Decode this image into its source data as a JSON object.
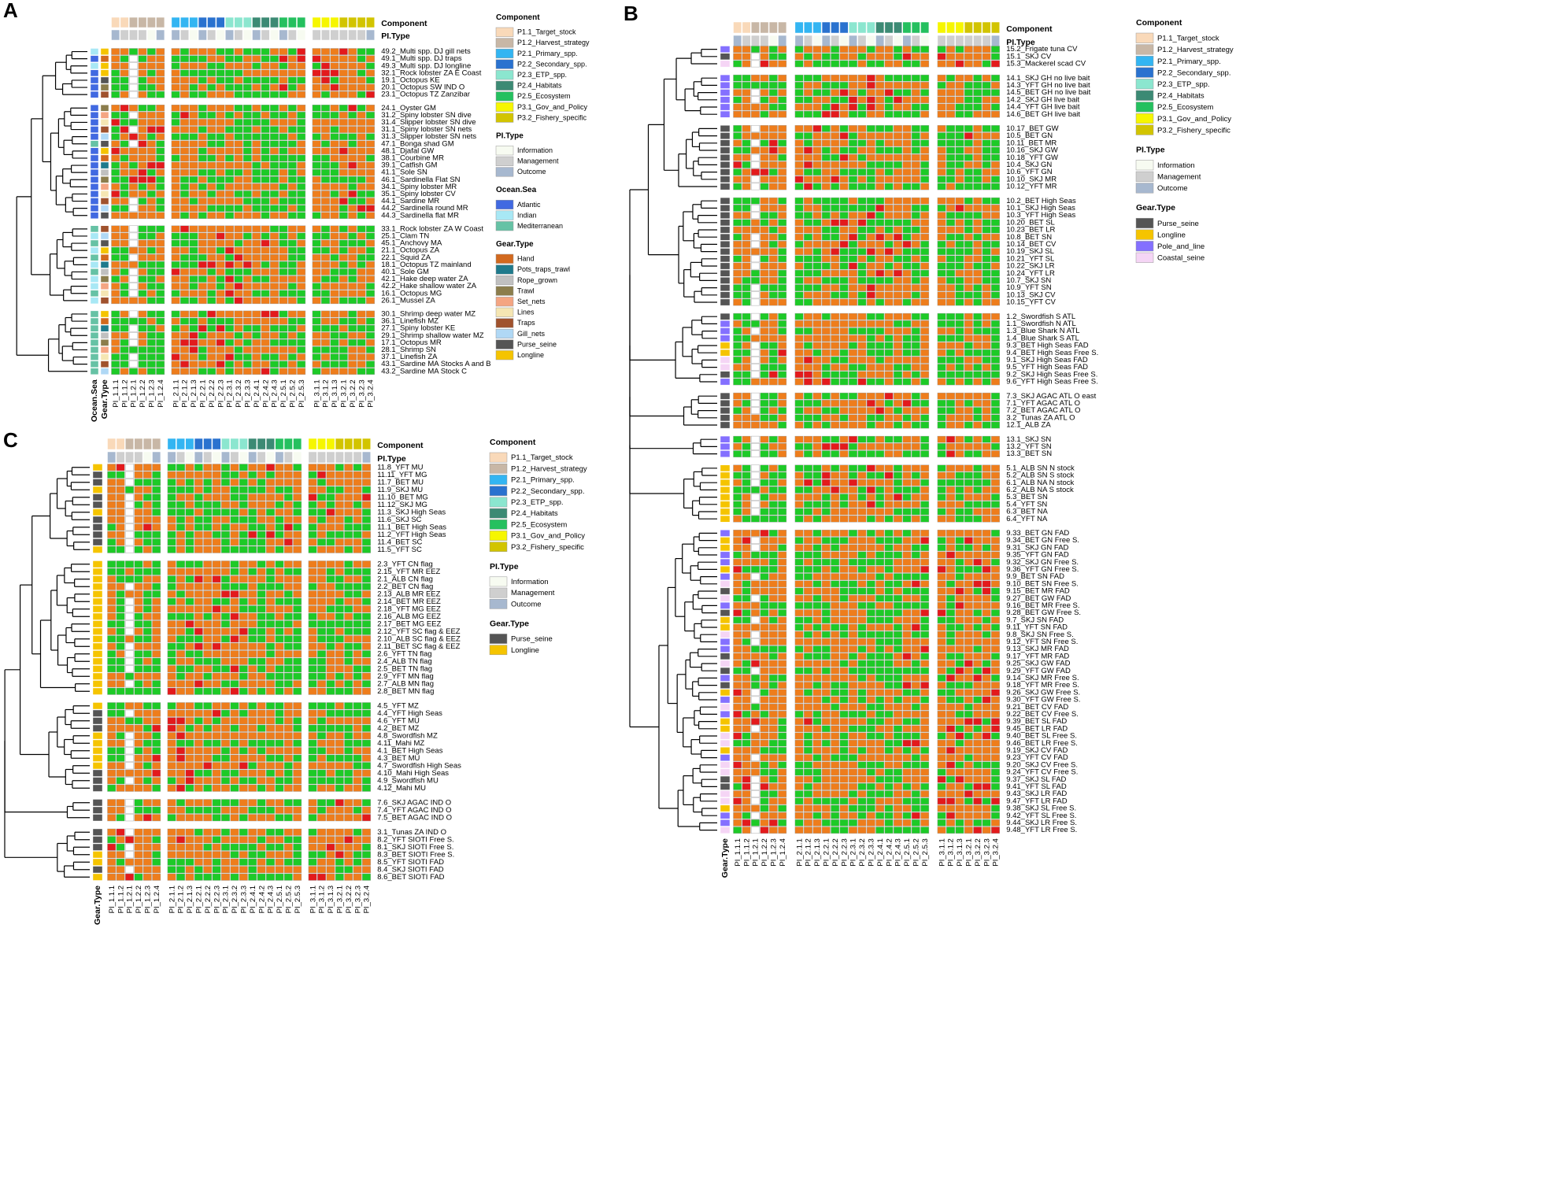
{
  "figure": {
    "panel_letters": [
      "A",
      "B",
      "C"
    ]
  },
  "colors": {
    "score_outcome": {
      "lt60": "#e31a1c",
      "60_79": "#ee7d1c",
      "ge80": "#1dca27",
      "na": "#ffffff"
    },
    "component": {
      "P1.1_Target_stock": "#f9d9b9",
      "P1.2_Harvest_strategy": "#c8b7a6",
      "P2.1_Primary_spp.": "#33b5f2",
      "P2.2_Secondary_spp.": "#2a72cf",
      "P2.3_ETP_spp.": "#8be6cf",
      "P2.4_Habitats": "#3c8a74",
      "P2.5_Ecosystem": "#25c05f",
      "P3.1_Gov_and_Policy": "#f6f600",
      "P3.2_Fishery_specific": "#d2c400"
    },
    "pi_type": {
      "Information": "#f7fbf1",
      "Management": "#cfcfcf",
      "Outcome": "#a7b8cf"
    },
    "ocean": {
      "Atlantic": "#4169e1",
      "Indian": "#a8e8f5",
      "Mediterranean": "#66c2a5"
    },
    "gear": {
      "Hand": "#d2691e",
      "Pots_traps_trawl": "#1f7a8c",
      "Rope_grown": "#c0c0c0",
      "Trawl": "#8b7d4c",
      "Set_nets": "#f4a582",
      "Lines": "#f5e6b3",
      "Traps": "#a0522d",
      "Gill_nets": "#b0d8f5",
      "Purse_seine": "#555555",
      "Longline": "#f5c400",
      "Pole_and_line": "#8470ff",
      "Coastal_seine": "#f5d5f5"
    }
  },
  "legend_text": {
    "component_title": "Component",
    "pitype_title": "PI.Type",
    "ocean_title": "Ocean.Sea",
    "gear_title": "Gear.Type",
    "component": [
      "P1.1_Target_stock",
      "P1.2_Harvest_strategy",
      "P2.1_Primary_spp.",
      "P2.2_Secondary_spp.",
      "P2.3_ETP_spp.",
      "P2.4_Habitats",
      "P2.5_Ecosystem",
      "P3.1_Gov_and_Policy",
      "P3.2_Fishery_specific"
    ],
    "pitype": [
      "Information",
      "Management",
      "Outcome"
    ],
    "ocean": [
      "Atlantic",
      "Indian",
      "Mediterranean"
    ],
    "gear_A": [
      "Hand",
      "Pots_traps_trawl",
      "Rope_grown",
      "Trawl",
      "Set_nets",
      "Lines",
      "Traps",
      "Gill_nets",
      "Purse_seine",
      "Longline"
    ],
    "gear_B": [
      "Purse_seine",
      "Longline",
      "Pole_and_line",
      "Coastal_seine"
    ],
    "gear_C": [
      "Purse_seine",
      "Longline"
    ]
  },
  "chart_data": [
    {
      "panel": "A",
      "type": "heatmap",
      "column_labels": [
        "PI_1.1.1",
        "PI_1.1.2",
        "PI_1.2.1",
        "PI_1.2.2",
        "PI_1.2.3",
        "PI_1.2.4",
        "PI_2.1.1",
        "PI_2.1.2",
        "PI_2.1.3",
        "PI_2.2.1",
        "PI_2.2.2",
        "PI_2.2.3",
        "PI_2.3.1",
        "PI_2.3.2",
        "PI_2.3.3",
        "PI_2.4.1",
        "PI_2.4.2",
        "PI_2.4.3",
        "PI_2.5.1",
        "PI_2.5.2",
        "PI_2.5.3",
        "PI_3.1.1",
        "PI_3.1.2",
        "PI_3.1.3",
        "PI_3.2.1",
        "PI_3.2.2",
        "PI_3.2.3",
        "PI_3.2.4"
      ],
      "header_rows": [
        "Component",
        "PI.Type"
      ],
      "side_bars": [
        "Ocean.Sea",
        "Gear.Type"
      ],
      "row_groups": [
        [
          "49.2_Multi spp. DJ gill nets",
          "49.1_Multi spp. DJ traps",
          "49.3_Multi spp. DJ longline",
          "32.1_Rock lobster ZA E Coast",
          "19.1_Octopus KE",
          "20.1_Octopus SW IND O",
          "23.1_Octopus TZ Zanzibar"
        ],
        [
          "24.1_Oyster GM",
          "31.2_Spiny lobster SN dive",
          "31.4_Slipper lobster SN dive",
          "31.1_Spiny lobster SN nets",
          "31.3_Slipper lobster SN nets",
          "47.1_Bonga shad GM",
          "48.1_Djafal GW",
          "38.1_Courbine MR",
          "39.1_Catfish GM",
          "41.1_Sole SN",
          "46.1_Sardinella Flat SN",
          "34.1_Spiny lobster MR",
          "35.1_Spiny lobster CV",
          "44.1_Sardine MR",
          "44.2_Sardinella round MR",
          "44.3_Sardinella flat MR"
        ],
        [
          "33.1_Rock lobster ZA W Coast",
          "25.1_Clam TN",
          "45.1_Anchovy MA",
          "21.1_Octopus ZA",
          "22.1_Squid ZA",
          "18.1_Octopus TZ mainland",
          "40.1_Sole GM",
          "42.1_Hake deep water ZA",
          "42.2_Hake shallow water ZA",
          "16.1_Octopus MG",
          "26.1_Mussel ZA"
        ],
        [
          "30.1_Shrimp deep water MZ",
          "36.1_Linefish MZ",
          "27.1_Spiny lobster KE",
          "29.1_Shrimp shallow water MZ",
          "17.1_Octopus MR",
          "28.1_Shrimp SN",
          "37.1_Linefish ZA",
          "43.1_Sardine MA Stocks A and B",
          "43.2_Sardine MA Stock C"
        ]
      ]
    },
    {
      "panel": "B",
      "type": "heatmap",
      "column_labels": [
        "PI_1.1.1",
        "PI_1.1.2",
        "PI_1.2.1",
        "PI_1.2.2",
        "PI_1.2.3",
        "PI_1.2.4",
        "PI_2.1.1",
        "PI_2.1.2",
        "PI_2.1.3",
        "PI_2.2.1",
        "PI_2.2.2",
        "PI_2.2.3",
        "PI_2.3.1",
        "PI_2.3.2",
        "PI_2.3.3",
        "PI_2.4.1",
        "PI_2.4.2",
        "PI_2.4.3",
        "PI_2.5.1",
        "PI_2.5.2",
        "PI_2.5.3",
        "PI_3.1.1",
        "PI_3.1.2",
        "PI_3.1.3",
        "PI_3.2.1",
        "PI_3.2.2",
        "PI_3.2.3",
        "PI_3.2.4"
      ],
      "header_rows": [
        "Component",
        "PI.Type"
      ],
      "side_bars": [
        "Gear.Type"
      ],
      "row_groups": [
        [
          "15.2_Frigate tuna CV",
          "15.1_SKJ CV",
          "15.3_Mackerel scad CV"
        ],
        [
          "14.1_SKJ GH no live bait",
          "14.3_YFT GH no live bait",
          "14.5_BET GH no live bait",
          "14.2_SKJ GH live bait",
          "14.4_YFT GH live bait",
          "14.6_BET GH live bait"
        ],
        [
          "10.17_BET GW",
          "10.5_BET GN",
          "10.11_BET MR",
          "10.16_SKJ GW",
          "10.18_YFT GW",
          "10.4_SKJ GN",
          "10.6_YFT GN",
          "10.10_SKJ MR",
          "10.12_YFT MR"
        ],
        [
          "10.2_BET High Seas",
          "10.1_SKJ High Seas",
          "10.3_YFT High Seas",
          "10.20_BET SL",
          "10.23_BET LR",
          "10.8_BET SN",
          "10.14_BET CV",
          "10.19_SKJ SL",
          "10.21_YFT SL",
          "10.22_SKJ LR",
          "10.24_YFT LR",
          "10.7_SKJ SN",
          "10.9_YFT SN",
          "10.13_SKJ CV",
          "10.15_YFT CV"
        ],
        [
          "1.2_Swordfish S ATL",
          "1.1_Swordfish N ATL",
          "1.3_Blue Shark N ATL",
          "1.4_Blue Shark S ATL",
          "9.3_BET High Seas FAD",
          "9.4_BET High Seas Free S.",
          "9.1_SKJ High Seas FAD",
          "9.5_YFT High Seas FAD",
          "9.2_SKJ High Seas Free S.",
          "9.6_YFT High Seas Free S."
        ],
        [
          "7.3_SKJ AGAC ATL O east",
          "7.1_YFT AGAC ATL O",
          "7.2_BET AGAC ATL O",
          "3.2_Tunas ZA ATL O",
          "12.1_ALB ZA"
        ],
        [
          "13.1_SKJ SN",
          "13.2_YFT SN",
          "13.3_BET SN"
        ],
        [
          "5.1_ALB SN N stock",
          "5.2_ALB SN S stock",
          "6.1_ALB NA N stock",
          "6.2_ALB NA S stock",
          "5.3_BET SN",
          "5.4_YFT SN",
          "6.3_BET NA",
          "6.4_YFT NA"
        ],
        [
          "9.33_BET GN FAD",
          "9.34_BET GN Free S.",
          "9.31_SKJ GN FAD",
          "9.35_YFT GN FAD",
          "9.32_SKJ GN Free S.",
          "9.36_YFT GN Free S.",
          "9.9_BET SN FAD",
          "9.10_BET SN Free S.",
          "9.15_BET MR FAD",
          "9.27_BET GW FAD",
          "9.16_BET MR Free S.",
          "9.28_BET GW Free S.",
          "9.7_SKJ SN FAD",
          "9.11_YFT SN FAD",
          "9.8_SKJ SN Free S.",
          "9.12_YFT SN Free S.",
          "9.13_SKJ MR FAD",
          "9.17_YFT MR FAD",
          "9.25_SKJ GW FAD",
          "9.29_YFT GW FAD",
          "9.14_SKJ MR Free S.",
          "9.18_YFT MR Free S.",
          "9.26_SKJ GW Free S.",
          "9.30_YFT GW Free S.",
          "9.21_BET CV FAD",
          "9.22_BET CV Free S.",
          "9.39_BET SL FAD",
          "9.45_BET LR FAD",
          "9.40_BET SL Free S.",
          "9.46_BET LR Free S.",
          "9.19_SKJ CV FAD",
          "9.23_YFT CV FAD",
          "9.20_SKJ CV Free S.",
          "9.24_YFT CV Free S.",
          "9.37_SKJ SL FAD",
          "9.41_YFT SL FAD",
          "9.43_SKJ LR FAD",
          "9.47_YFT LR FAD",
          "9.38_SKJ SL Free S.",
          "9.42_YFT SL Free S.",
          "9.44_SKJ LR Free S.",
          "9.48_YFT LR Free S."
        ]
      ]
    },
    {
      "panel": "C",
      "type": "heatmap",
      "column_labels": [
        "PI_1.1.1",
        "PI_1.1.2",
        "PI_1.2.1",
        "PI_1.2.2",
        "PI_1.2.3",
        "PI_1.2.4",
        "PI_2.1.1",
        "PI_2.1.2",
        "PI_2.1.3",
        "PI_2.2.1",
        "PI_2.2.2",
        "PI_2.2.3",
        "PI_2.3.1",
        "PI_2.3.2",
        "PI_2.3.3",
        "PI_2.4.1",
        "PI_2.4.2",
        "PI_2.4.3",
        "PI_2.5.1",
        "PI_2.5.2",
        "PI_2.5.3",
        "PI_3.1.1",
        "PI_3.1.2",
        "PI_3.1.3",
        "PI_3.2.1",
        "PI_3.2.2",
        "PI_3.2.3",
        "PI_3.2.4"
      ],
      "header_rows": [
        "Component",
        "PI.Type"
      ],
      "side_bars": [
        "Gear.Type"
      ],
      "row_groups": [
        [
          "11.8_YFT MU",
          "11.11_YFT MG",
          "11.7_BET MU",
          "11.9_SKJ MU",
          "11.10_BET MG",
          "11.12_SKJ MG",
          "11.3_SKJ High Seas",
          "11.6_SKJ SC",
          "11.1_BET High Seas",
          "11.2_YFT High Seas",
          "11.4_BET SC",
          "11.5_YFT SC"
        ],
        [
          "2.3_YFT CN flag",
          "2.15_YFT MR EEZ",
          "2.1_ALB CN flag",
          "2.2_BET CN flag",
          "2.13_ALB MR EEZ",
          "2.14_BET MR EEZ",
          "2.18_YFT MG EEZ",
          "2.16_ALB MG EEZ",
          "2.17_BET MG EEZ",
          "2.12_YFT SC flag & EEZ",
          "2.10_ALB SC flag & EEZ",
          "2.11_BET SC flag & EEZ",
          "2.6_YFT TN flag",
          "2.4_ALB TN flag",
          "2.5_BET TN flag",
          "2.9_YFT MN flag",
          "2.7_ALB MN flag",
          "2.8_BET MN flag"
        ],
        [
          "4.5_YFT MZ",
          "4.4_YFT High Seas",
          "4.6_YFT MU",
          "4.2_BET MZ",
          "4.8_Swordfish MZ",
          "4.11_Mahi MZ",
          "4.1_BET High Seas",
          "4.3_BET MU",
          "4.7_Swordfish High Seas",
          "4.10_Mahi High Seas",
          "4.9_Swordfish MU",
          "4.12_Mahi MU"
        ],
        [
          "7.6_SKJ AGAC IND O",
          "7.4_YFT AGAC IND O",
          "7.5_BET AGAC IND O"
        ],
        [
          "3.1_Tunas ZA IND O",
          "8.2_YFT SIOTI Free S.",
          "8.1_SKJ SIOTI Free S.",
          "8.3_BET SIOTI Free S.",
          "8.5_YFT SIOTI FAD",
          "8.4_SKJ SIOTI FAD",
          "8.6_BET SIOTI FAD"
        ]
      ]
    }
  ]
}
